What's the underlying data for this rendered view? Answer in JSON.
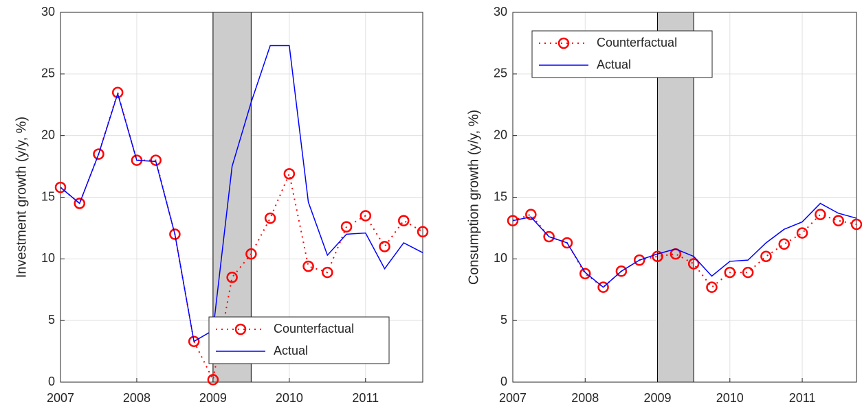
{
  "chart_data": [
    {
      "type": "line",
      "y_label": "Investment growth (y/y, %)",
      "x": [
        2007,
        2007.25,
        2007.5,
        2007.75,
        2008,
        2008.25,
        2008.5,
        2008.75,
        2009,
        2009.25,
        2009.5,
        2009.75,
        2010,
        2010.25,
        2010.5,
        2010.75,
        2011,
        2011.25,
        2011.5,
        2011.75
      ],
      "series": [
        {
          "name": "Counterfactual",
          "color": "#ff0000",
          "values": [
            15.8,
            14.5,
            18.5,
            23.5,
            18.0,
            18.0,
            12.0,
            3.3,
            0.2,
            8.5,
            10.4,
            13.3,
            16.9,
            9.4,
            8.9,
            12.6,
            13.5,
            11.0,
            13.1,
            12.2
          ]
        },
        {
          "name": "Actual",
          "color": "#0000ff",
          "values": [
            15.8,
            14.5,
            18.5,
            23.4,
            18.0,
            17.9,
            12.0,
            3.3,
            4.2,
            17.5,
            22.7,
            27.3,
            27.3,
            14.6,
            10.3,
            12.0,
            12.1,
            9.2,
            11.3,
            10.5
          ]
        }
      ],
      "shaded_region": [
        2009,
        2009.5
      ],
      "xlim": [
        2007,
        2011.75
      ],
      "xticks": [
        2007,
        2008,
        2009,
        2010,
        2011
      ],
      "ylim": [
        0,
        30
      ],
      "yticks": [
        0,
        5,
        10,
        15,
        20,
        25,
        30
      ],
      "grid": true,
      "legend": "lower right"
    },
    {
      "type": "line",
      "y_label": "Consumption growth (y/y, %)",
      "x": [
        2007,
        2007.25,
        2007.5,
        2007.75,
        2008,
        2008.25,
        2008.5,
        2008.75,
        2009,
        2009.25,
        2009.5,
        2009.75,
        2010,
        2010.25,
        2010.5,
        2010.75,
        2011,
        2011.25,
        2011.5,
        2011.75
      ],
      "series": [
        {
          "name": "Counterfactual",
          "color": "#ff0000",
          "values": [
            13.1,
            13.6,
            11.8,
            11.3,
            8.8,
            7.7,
            9.0,
            9.9,
            10.2,
            10.4,
            9.6,
            7.7,
            8.9,
            8.9,
            10.2,
            11.2,
            12.1,
            13.6,
            13.1,
            12.8
          ]
        },
        {
          "name": "Actual",
          "color": "#0000ff",
          "values": [
            13.1,
            13.4,
            11.8,
            11.3,
            8.9,
            7.7,
            9.0,
            9.9,
            10.4,
            10.8,
            10.2,
            8.6,
            9.8,
            9.9,
            11.3,
            12.4,
            13.0,
            14.5,
            13.7,
            13.3
          ]
        }
      ],
      "shaded_region": [
        2009,
        2009.5
      ],
      "xlim": [
        2007,
        2011.75
      ],
      "xticks": [
        2007,
        2008,
        2009,
        2010,
        2011
      ],
      "ylim": [
        0,
        30
      ],
      "yticks": [
        0,
        5,
        10,
        15,
        20,
        25,
        30
      ],
      "grid": true,
      "legend": "upper left"
    }
  ]
}
